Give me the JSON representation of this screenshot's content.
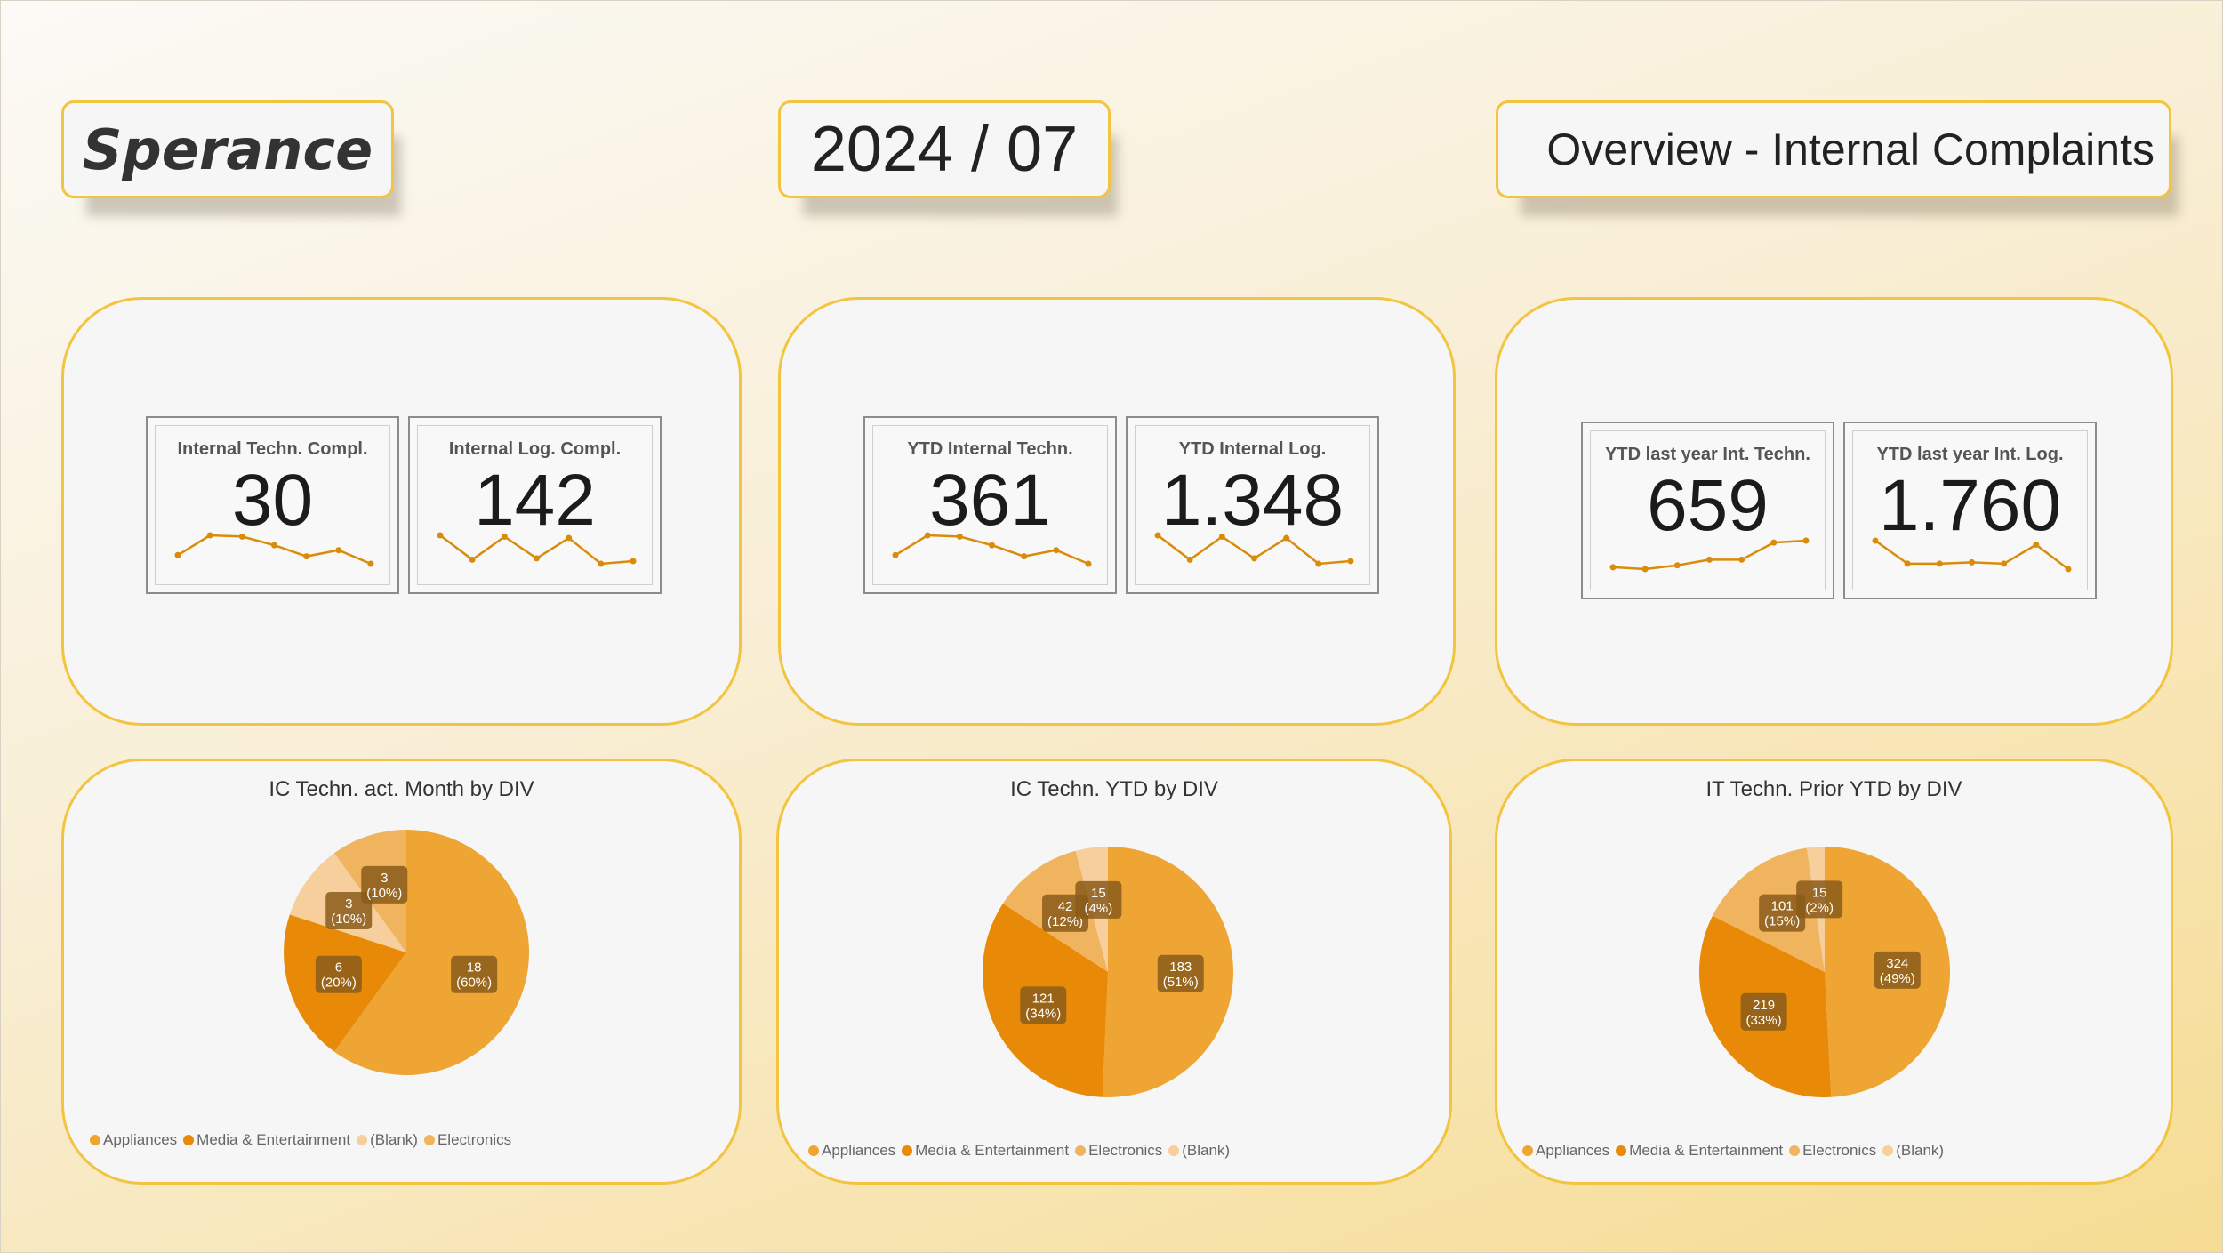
{
  "header": {
    "brand": "Sperance",
    "period": "2024 / 07",
    "title": "Overview - Internal Complaints"
  },
  "colors": {
    "accent": "#f2c440",
    "sparkline": "#d98c0a",
    "Appliances": "#efa534",
    "Media & Entertainment": "#e88a07",
    "Electronics": "#f0b45e",
    "(Blank)": "#f6cf9c",
    "label_bg": "#8a5a1a"
  },
  "kpis": [
    {
      "label": "Internal Techn. Compl.",
      "value": "30",
      "trend": [
        12,
        28,
        27,
        20,
        11,
        16,
        5
      ]
    },
    {
      "label": "Internal Log. Compl.",
      "value": "142",
      "trend": [
        26,
        8,
        25,
        9,
        24,
        5,
        7
      ]
    },
    {
      "label": "YTD Internal Techn.",
      "value": "361",
      "trend": [
        12,
        28,
        27,
        20,
        11,
        16,
        5
      ]
    },
    {
      "label": "YTD Internal Log.",
      "value": "1.348",
      "trend": [
        26,
        8,
        25,
        9,
        24,
        5,
        7
      ]
    },
    {
      "label": "YTD last year Int. Techn.",
      "value": "659",
      "trend": [
        4,
        3,
        5,
        8,
        8,
        17,
        18
      ]
    },
    {
      "label": "YTD last year Int. Log.",
      "value": "1.760",
      "trend": [
        22,
        5,
        5,
        6,
        5,
        19,
        1
      ]
    }
  ],
  "chart_data": [
    {
      "type": "pie",
      "title": "IC Techn. act. Month by DIV",
      "legend": [
        "Appliances",
        "Media & Entertainment",
        "(Blank)",
        "Electronics"
      ],
      "slices": [
        {
          "name": "Appliances",
          "value": 18,
          "label": "18",
          "pct": "(60%)"
        },
        {
          "name": "Media & Entertainment",
          "value": 6,
          "label": "6",
          "pct": "(20%)"
        },
        {
          "name": "(Blank)",
          "value": 3,
          "label": "3",
          "pct": "(10%)"
        },
        {
          "name": "Electronics",
          "value": 3,
          "label": "3",
          "pct": "(10%)"
        }
      ]
    },
    {
      "type": "pie",
      "title": "IC Techn. YTD by DIV",
      "legend": [
        "Appliances",
        "Media & Entertainment",
        "Electronics",
        "(Blank)"
      ],
      "slices": [
        {
          "name": "Appliances",
          "value": 183,
          "label": "183",
          "pct": "(51%)"
        },
        {
          "name": "Media & Entertainment",
          "value": 121,
          "label": "121",
          "pct": "(34%)"
        },
        {
          "name": "Electronics",
          "value": 42,
          "label": "42",
          "pct": "(12%)"
        },
        {
          "name": "(Blank)",
          "value": 15,
          "label": "15",
          "pct": "(4%)"
        }
      ]
    },
    {
      "type": "pie",
      "title": "IT Techn. Prior YTD by DIV",
      "legend": [
        "Appliances",
        "Media & Entertainment",
        "Electronics",
        "(Blank)"
      ],
      "slices": [
        {
          "name": "Appliances",
          "value": 324,
          "label": "324",
          "pct": "(49%)"
        },
        {
          "name": "Media & Entertainment",
          "value": 219,
          "label": "219",
          "pct": "(33%)"
        },
        {
          "name": "Electronics",
          "value": 101,
          "label": "101",
          "pct": "(15%)"
        },
        {
          "name": "(Blank)",
          "value": 15,
          "label": "15",
          "pct": "(2%)"
        }
      ]
    }
  ]
}
